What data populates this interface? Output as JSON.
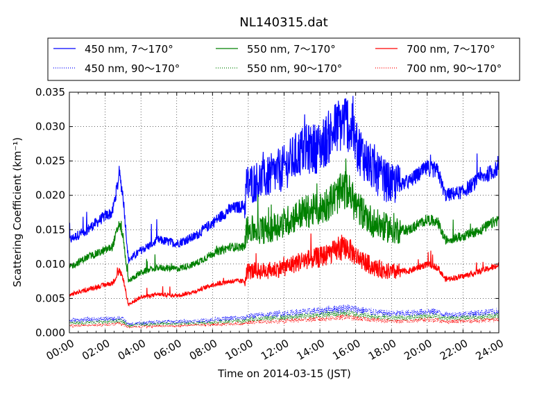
{
  "chart_data": {
    "type": "line",
    "title": "NL140315.dat",
    "xlabel": "Time on 2014-03-15 (JST)",
    "ylabel": "Scattering Coefficient (km⁻¹)",
    "xlim": [
      0,
      24
    ],
    "ylim": [
      0,
      0.035
    ],
    "x_tick_labels": [
      "00:00",
      "02:00",
      "04:00",
      "06:00",
      "08:00",
      "10:00",
      "12:00",
      "14:00",
      "16:00",
      "18:00",
      "20:00",
      "22:00",
      "24:00"
    ],
    "y_tick_labels": [
      "0.000",
      "0.005",
      "0.010",
      "0.015",
      "0.020",
      "0.025",
      "0.030",
      "0.035"
    ],
    "grid": true,
    "legend": "top, above plot, 3 columns",
    "x_hours": [
      0,
      1,
      2,
      2.4,
      2.8,
      3,
      3.3,
      4,
      5,
      6,
      7,
      8,
      9,
      9.8,
      9.9,
      11,
      12,
      13,
      14,
      15,
      15.5,
      16,
      17,
      18,
      19,
      20,
      20.6,
      21,
      22,
      23,
      24
    ],
    "series": [
      {
        "name": "450 nm, 7～170°",
        "color": "#0000ff",
        "style": "solid",
        "values": [
          0.0135,
          0.015,
          0.017,
          0.0175,
          0.023,
          0.02,
          0.0105,
          0.012,
          0.0135,
          0.013,
          0.014,
          0.016,
          0.018,
          0.0185,
          0.0215,
          0.0225,
          0.024,
          0.0265,
          0.027,
          0.03,
          0.031,
          0.0275,
          0.0235,
          0.0215,
          0.022,
          0.024,
          0.0235,
          0.02,
          0.0205,
          0.0225,
          0.024
        ]
      },
      {
        "name": "550 nm, 7～170°",
        "color": "#008000",
        "style": "solid",
        "values": [
          0.0095,
          0.011,
          0.012,
          0.0125,
          0.016,
          0.014,
          0.0075,
          0.0088,
          0.0095,
          0.0093,
          0.01,
          0.0115,
          0.0125,
          0.0125,
          0.015,
          0.015,
          0.016,
          0.0175,
          0.018,
          0.02,
          0.021,
          0.0185,
          0.016,
          0.015,
          0.015,
          0.0165,
          0.016,
          0.0135,
          0.014,
          0.015,
          0.0165
        ]
      },
      {
        "name": "700 nm, 7～170°",
        "color": "#ff0000",
        "style": "solid",
        "values": [
          0.0055,
          0.0063,
          0.007,
          0.0072,
          0.009,
          0.008,
          0.004,
          0.0052,
          0.0056,
          0.0054,
          0.006,
          0.007,
          0.0075,
          0.0075,
          0.009,
          0.009,
          0.0095,
          0.0105,
          0.011,
          0.012,
          0.0125,
          0.0112,
          0.0095,
          0.0088,
          0.009,
          0.01,
          0.0095,
          0.0078,
          0.0082,
          0.009,
          0.0098
        ]
      },
      {
        "name": "450 nm, 90～170°",
        "color": "#0000ff",
        "style": "dotted",
        "values": [
          0.0018,
          0.0019,
          0.002,
          0.002,
          0.0022,
          0.002,
          0.0012,
          0.0014,
          0.0016,
          0.0016,
          0.0017,
          0.0019,
          0.0021,
          0.0021,
          0.0024,
          0.0026,
          0.0028,
          0.003,
          0.0032,
          0.0035,
          0.0036,
          0.0034,
          0.003,
          0.0028,
          0.0028,
          0.0031,
          0.003,
          0.0026,
          0.0027,
          0.0029,
          0.0031
        ]
      },
      {
        "name": "550 nm, 90～170°",
        "color": "#008000",
        "style": "dotted",
        "values": [
          0.0014,
          0.0015,
          0.0016,
          0.0016,
          0.0018,
          0.0016,
          0.001,
          0.0012,
          0.0013,
          0.0013,
          0.0014,
          0.0015,
          0.0017,
          0.0017,
          0.0019,
          0.0021,
          0.0022,
          0.0024,
          0.0026,
          0.0028,
          0.0029,
          0.0027,
          0.0024,
          0.0022,
          0.0022,
          0.0025,
          0.0024,
          0.0021,
          0.0022,
          0.0023,
          0.0025
        ]
      },
      {
        "name": "700 nm, 90～170°",
        "color": "#ff0000",
        "style": "dotted",
        "values": [
          0.001,
          0.0011,
          0.0012,
          0.0012,
          0.0014,
          0.0012,
          0.0008,
          0.0009,
          0.001,
          0.001,
          0.0011,
          0.0012,
          0.0013,
          0.0013,
          0.0015,
          0.0016,
          0.0017,
          0.0019,
          0.002,
          0.0022,
          0.0023,
          0.0021,
          0.0019,
          0.0017,
          0.0017,
          0.0019,
          0.0019,
          0.0016,
          0.0017,
          0.0018,
          0.0019
        ]
      }
    ]
  }
}
